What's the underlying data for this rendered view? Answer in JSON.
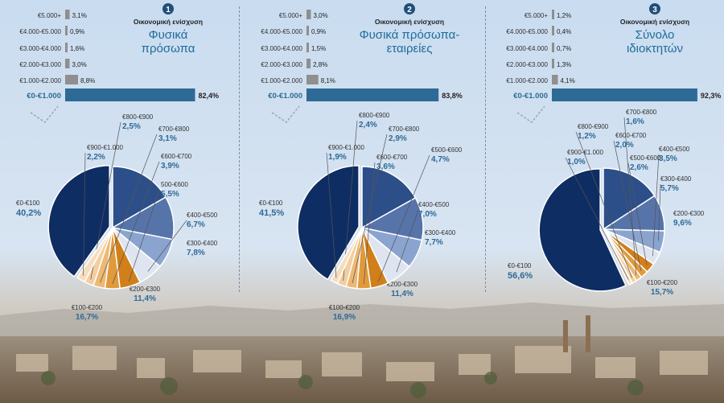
{
  "colors": {
    "income_bar_small": "#8f8f8f",
    "income_bar_main": "#2e6a96",
    "main_label": "#2e6a96",
    "title": "#1f6c9a",
    "badge": "#1f4f7a",
    "pie_slices": [
      "#0e2d63",
      "#2c4f8a",
      "#5674aa",
      "#8aa4cf",
      "#dfe5f0",
      "#d07f1a",
      "#e09a3c",
      "#ecb872",
      "#f3ceA0",
      "#f7ddbe",
      "#fbeedd"
    ]
  },
  "chart_data": [
    {
      "type": "bar",
      "badge": "1",
      "subtitle": "Οικονομική ενίσχυση",
      "title": [
        "Φυσικά",
        "πρόσωπα"
      ],
      "categories": [
        "€5.000+",
        "€4.000-€5.000",
        "€3.000-€4.000",
        "€2.000-€3.000",
        "€1.000-€2.000",
        "€0-€1.000"
      ],
      "values": [
        3.1,
        0.9,
        1.6,
        3.0,
        8.8,
        82.4
      ],
      "value_labels": [
        "3,1%",
        "0,9%",
        "1,6%",
        "3,0%",
        "8,8%",
        "82,4%"
      ],
      "pie": {
        "type": "pie",
        "categories": [
          "€0-€100",
          "€100-€200",
          "€200-€300",
          "€300-€400",
          "€400-€500",
          "500-€600",
          "€600-€700",
          "€700-€800",
          "€800-€900",
          "€900-€1.000"
        ],
        "values": [
          40.2,
          16.7,
          11.4,
          7.8,
          6.7,
          5.5,
          3.9,
          3.1,
          2.5,
          2.2
        ],
        "value_labels": [
          "40,2%",
          "16,7%",
          "11,4%",
          "7,8%",
          "6,7%",
          "5,5%",
          "3,9%",
          "3,1%",
          "2,5%",
          "2,2%"
        ]
      }
    },
    {
      "type": "bar",
      "badge": "2",
      "subtitle": "Οικονομική ενίσχυση",
      "title": [
        "Φυσικά πρόσωπα-",
        "εταιρείες"
      ],
      "categories": [
        "€5.000+",
        "€4.000-€5.000",
        "€3.000-€4.000",
        "€2.000-€3.000",
        "€1.000-€2.000",
        "€0-€1.000"
      ],
      "values": [
        3.0,
        0.9,
        1.5,
        2.8,
        8.1,
        83.8
      ],
      "value_labels": [
        "3,0%",
        "0,9%",
        "1,5%",
        "2,8%",
        "8,1%",
        "83,8%"
      ],
      "pie": {
        "type": "pie",
        "categories": [
          "€0-€100",
          "€100-€200",
          "€200-€300",
          "€300-€400",
          "€400-€500",
          "€500-€600",
          "€600-€700",
          "€700-€800",
          "€800-€900",
          "€900-€1.000"
        ],
        "values": [
          41.5,
          16.9,
          11.4,
          7.7,
          7.0,
          4.7,
          3.6,
          2.9,
          2.4,
          1.9
        ],
        "value_labels": [
          "41,5%",
          "16,9%",
          "11,4%",
          "7,7%",
          "7,0%",
          "4,7%",
          "3,6%",
          "2,9%",
          "2,4%",
          "1,9%"
        ]
      }
    },
    {
      "type": "bar",
      "badge": "3",
      "subtitle": "Οικονομική ενίσχυση",
      "title": [
        "Σύνολο",
        "ιδιοκτητών"
      ],
      "categories": [
        "€5.000+",
        "€4.000-€5.000",
        "€3.000-€4.000",
        "€2.000-€3.000",
        "€1.000-€2.000",
        "€0-€1.000"
      ],
      "values": [
        1.2,
        0.4,
        0.7,
        1.3,
        4.1,
        92.3
      ],
      "value_labels": [
        "1,2%",
        "0,4%",
        "0,7%",
        "1,3%",
        "4,1%",
        "92,3%"
      ],
      "pie": {
        "type": "pie",
        "categories": [
          "€0-€100",
          "€100-€200",
          "€200-€300",
          "€300-€400",
          "€400-€500",
          "€500-€600",
          "€600-€700",
          "€700-€800",
          "€800-€900",
          "€900-€1.000"
        ],
        "values": [
          56.6,
          15.7,
          9.6,
          5.7,
          3.5,
          2.6,
          2.0,
          1.6,
          1.2,
          1.0
        ],
        "value_labels": [
          "56,6%",
          "15,7%",
          "9,6%",
          "5,7%",
          "3,5%",
          "2,6%",
          "2,0%",
          "1,6%",
          "1,2%",
          "1,0%"
        ]
      }
    }
  ]
}
